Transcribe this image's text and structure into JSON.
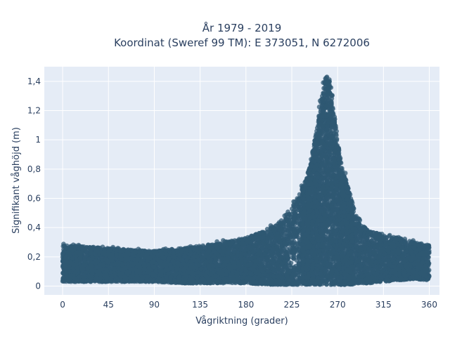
{
  "chart_data": {
    "type": "scatter",
    "title_line1": "År 1979 - 2019",
    "title_line2": "Koordinat (Sweref 99 TM): E 373051, N 6272006",
    "xlabel": "Vågriktning (grader)",
    "ylabel": "Signifikant våghöjd (m)",
    "xlim": [
      -18,
      370
    ],
    "ylim": [
      -0.06,
      1.5
    ],
    "xticks": [
      0,
      45,
      90,
      135,
      180,
      225,
      270,
      315,
      360
    ],
    "xtick_labels": [
      "0",
      "45",
      "90",
      "135",
      "180",
      "225",
      "270",
      "315",
      "360"
    ],
    "yticks": [
      0,
      0.2,
      0.4,
      0.6,
      0.8,
      1.0,
      1.2,
      1.4
    ],
    "ytick_labels": [
      "0",
      "0,2",
      "0,4",
      "0,6",
      "0,8",
      "1",
      "1,2",
      "1,4"
    ],
    "grid": true,
    "marker_color": "#2f5873",
    "plot_background": "#e5ecf6",
    "envelope": {
      "direction": [
        0,
        30,
        60,
        90,
        120,
        150,
        180,
        200,
        215,
        230,
        240,
        245,
        250,
        255,
        258,
        262,
        265,
        270,
        275,
        280,
        285,
        290,
        300,
        315,
        330,
        345,
        360
      ],
      "min_height": [
        0.03,
        0.03,
        0.03,
        0.03,
        0.02,
        0.02,
        0.02,
        0.01,
        0.01,
        0.01,
        0.01,
        0.01,
        0.01,
        0.01,
        0.01,
        0.01,
        0.01,
        0.01,
        0.01,
        0.01,
        0.01,
        0.02,
        0.02,
        0.03,
        0.04,
        0.05,
        0.04
      ],
      "max_height": [
        0.28,
        0.27,
        0.25,
        0.24,
        0.26,
        0.29,
        0.33,
        0.38,
        0.45,
        0.6,
        0.75,
        0.9,
        1.1,
        1.32,
        1.43,
        1.42,
        1.3,
        1.0,
        0.78,
        0.7,
        0.55,
        0.45,
        0.38,
        0.35,
        0.33,
        0.3,
        0.28
      ]
    }
  }
}
